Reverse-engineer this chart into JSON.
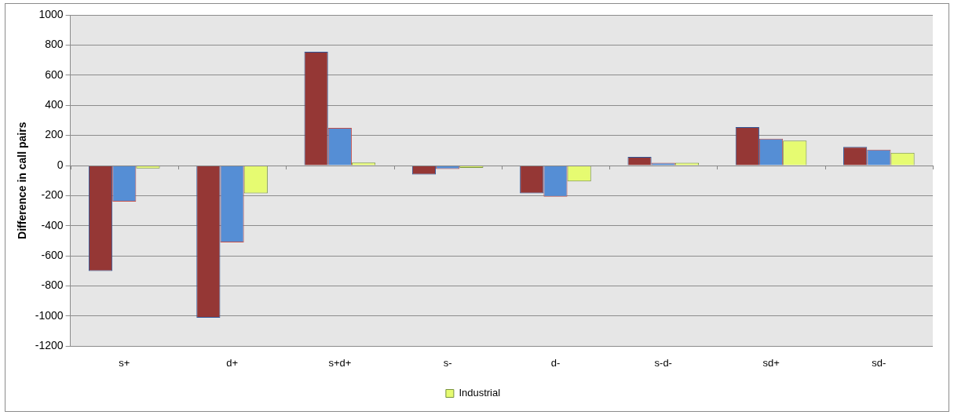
{
  "chart_data": {
    "type": "bar",
    "ylabel": "Difference in call pairs",
    "categories": [
      "s+",
      "d+",
      "s+d+",
      "s-",
      "d-",
      "s-d-",
      "sd+",
      "sd-"
    ],
    "series": [
      {
        "color": "#953735",
        "values": [
          -700,
          -1010,
          755,
          -60,
          -185,
          57,
          255,
          124
        ]
      },
      {
        "color": "#558ed5",
        "values": [
          -240,
          -510,
          250,
          -23,
          -207,
          18,
          179,
          106
        ]
      },
      {
        "name": "Industrial",
        "color": "#e6fb71",
        "values": [
          -20,
          -185,
          20,
          -16,
          -106,
          18,
          166,
          85
        ]
      }
    ],
    "ylim": [
      -1200,
      1000
    ],
    "yticks": [
      -1200,
      -1000,
      -800,
      -600,
      -400,
      -200,
      0,
      200,
      400,
      600,
      800,
      1000
    ],
    "grid": "y",
    "legend": "bottom"
  }
}
